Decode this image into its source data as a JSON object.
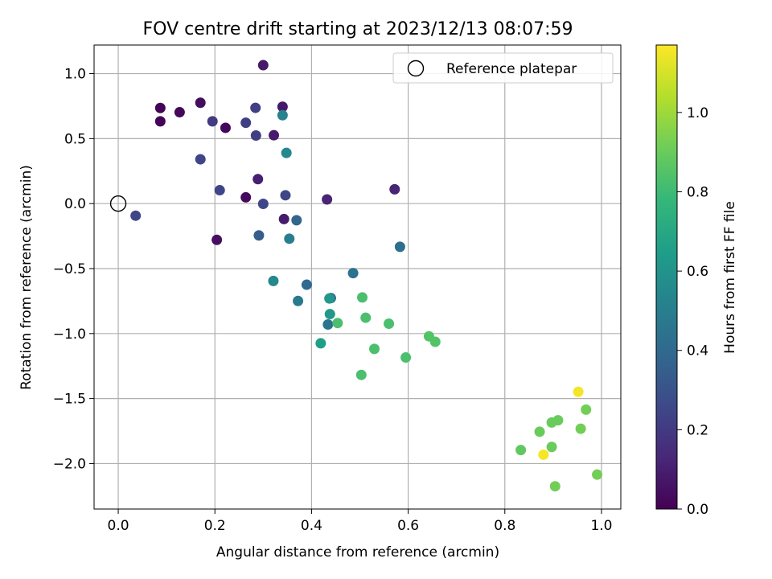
{
  "chart_data": {
    "type": "scatter",
    "title": "FOV centre drift starting at 2023/12/13 08:07:59",
    "xlabel": "Angular distance from reference (arcmin)",
    "ylabel": "Rotation from reference (arcmin)",
    "xlim": [
      -0.05,
      1.04
    ],
    "ylim": [
      -2.35,
      1.22
    ],
    "xticks": [
      0.0,
      0.2,
      0.4,
      0.6,
      0.8,
      1.0
    ],
    "xtick_labels": [
      "0.0",
      "0.2",
      "0.4",
      "0.6",
      "0.8",
      "1.0"
    ],
    "yticks": [
      -2.0,
      -1.5,
      -1.0,
      -0.5,
      0.0,
      0.5,
      1.0
    ],
    "ytick_labels": [
      "−2.0",
      "−1.5",
      "−1.0",
      "−0.5",
      "0.0",
      "0.5",
      "1.0"
    ],
    "grid": true,
    "legend": {
      "placement": "top-right",
      "entries": [
        "Reference platepar"
      ]
    },
    "reference_point": {
      "x": 0.0,
      "y": 0.0
    },
    "colorbar": {
      "label": "Hours from first FF file",
      "colormap": "viridis",
      "range": [
        0.0,
        1.17
      ],
      "ticks": [
        0.0,
        0.2,
        0.4,
        0.6,
        0.8,
        1.0
      ],
      "tick_labels": [
        "0.0",
        "0.2",
        "0.4",
        "0.6",
        "0.8",
        "1.0"
      ]
    },
    "points": [
      {
        "x": 0.087,
        "y": 0.736,
        "c": 0.01
      },
      {
        "x": 0.087,
        "y": 0.633,
        "c": 0.01
      },
      {
        "x": 0.127,
        "y": 0.703,
        "c": 0.02
      },
      {
        "x": 0.17,
        "y": 0.776,
        "c": 0.04
      },
      {
        "x": 0.222,
        "y": 0.583,
        "c": 0.02
      },
      {
        "x": 0.264,
        "y": 0.048,
        "c": 0.03
      },
      {
        "x": 0.204,
        "y": -0.279,
        "c": 0.05
      },
      {
        "x": 0.3,
        "y": 1.065,
        "c": 0.08
      },
      {
        "x": 0.34,
        "y": 0.745,
        "c": 0.08
      },
      {
        "x": 0.322,
        "y": 0.526,
        "c": 0.09
      },
      {
        "x": 0.289,
        "y": 0.188,
        "c": 0.1
      },
      {
        "x": 0.343,
        "y": -0.119,
        "c": 0.09
      },
      {
        "x": 0.432,
        "y": 0.032,
        "c": 0.12
      },
      {
        "x": 0.572,
        "y": 0.11,
        "c": 0.12
      },
      {
        "x": 0.195,
        "y": 0.633,
        "c": 0.2
      },
      {
        "x": 0.284,
        "y": 0.737,
        "c": 0.22
      },
      {
        "x": 0.264,
        "y": 0.622,
        "c": 0.22
      },
      {
        "x": 0.285,
        "y": 0.524,
        "c": 0.22
      },
      {
        "x": 0.17,
        "y": 0.341,
        "c": 0.25
      },
      {
        "x": 0.21,
        "y": 0.103,
        "c": 0.25
      },
      {
        "x": 0.036,
        "y": -0.093,
        "c": 0.25
      },
      {
        "x": 0.3,
        "y": -0.002,
        "c": 0.25
      },
      {
        "x": 0.346,
        "y": 0.064,
        "c": 0.25
      },
      {
        "x": 0.291,
        "y": -0.245,
        "c": 0.35
      },
      {
        "x": 0.369,
        "y": -0.128,
        "c": 0.38
      },
      {
        "x": 0.44,
        "y": -0.727,
        "c": 0.38
      },
      {
        "x": 0.39,
        "y": -0.624,
        "c": 0.4
      },
      {
        "x": 0.583,
        "y": -0.332,
        "c": 0.42
      },
      {
        "x": 0.486,
        "y": -0.535,
        "c": 0.44
      },
      {
        "x": 0.434,
        "y": -0.93,
        "c": 0.45
      },
      {
        "x": 0.372,
        "y": -0.749,
        "c": 0.48
      },
      {
        "x": 0.354,
        "y": -0.27,
        "c": 0.5
      },
      {
        "x": 0.34,
        "y": 0.68,
        "c": 0.52
      },
      {
        "x": 0.348,
        "y": 0.39,
        "c": 0.55
      },
      {
        "x": 0.321,
        "y": -0.595,
        "c": 0.55
      },
      {
        "x": 0.437,
        "y": -0.73,
        "c": 0.62
      },
      {
        "x": 0.438,
        "y": -0.85,
        "c": 0.62
      },
      {
        "x": 0.419,
        "y": -1.075,
        "c": 0.65
      },
      {
        "x": 0.505,
        "y": -0.722,
        "c": 0.83
      },
      {
        "x": 0.454,
        "y": -0.919,
        "c": 0.83
      },
      {
        "x": 0.512,
        "y": -0.878,
        "c": 0.83
      },
      {
        "x": 0.56,
        "y": -0.924,
        "c": 0.83
      },
      {
        "x": 0.53,
        "y": -1.118,
        "c": 0.83
      },
      {
        "x": 0.595,
        "y": -1.184,
        "c": 0.83
      },
      {
        "x": 0.643,
        "y": -1.021,
        "c": 0.85
      },
      {
        "x": 0.656,
        "y": -1.063,
        "c": 0.85
      },
      {
        "x": 0.503,
        "y": -1.318,
        "c": 0.83
      },
      {
        "x": 0.833,
        "y": -1.896,
        "c": 0.88
      },
      {
        "x": 0.872,
        "y": -1.755,
        "c": 0.9
      },
      {
        "x": 0.897,
        "y": -1.684,
        "c": 0.9
      },
      {
        "x": 0.91,
        "y": -1.667,
        "c": 0.9
      },
      {
        "x": 0.897,
        "y": -1.872,
        "c": 0.9
      },
      {
        "x": 0.957,
        "y": -1.732,
        "c": 0.92
      },
      {
        "x": 0.968,
        "y": -1.585,
        "c": 0.92
      },
      {
        "x": 0.904,
        "y": -2.175,
        "c": 0.92
      },
      {
        "x": 0.991,
        "y": -2.085,
        "c": 0.92
      },
      {
        "x": 0.952,
        "y": -1.448,
        "c": 1.15
      },
      {
        "x": 0.88,
        "y": -1.932,
        "c": 1.16
      }
    ]
  }
}
